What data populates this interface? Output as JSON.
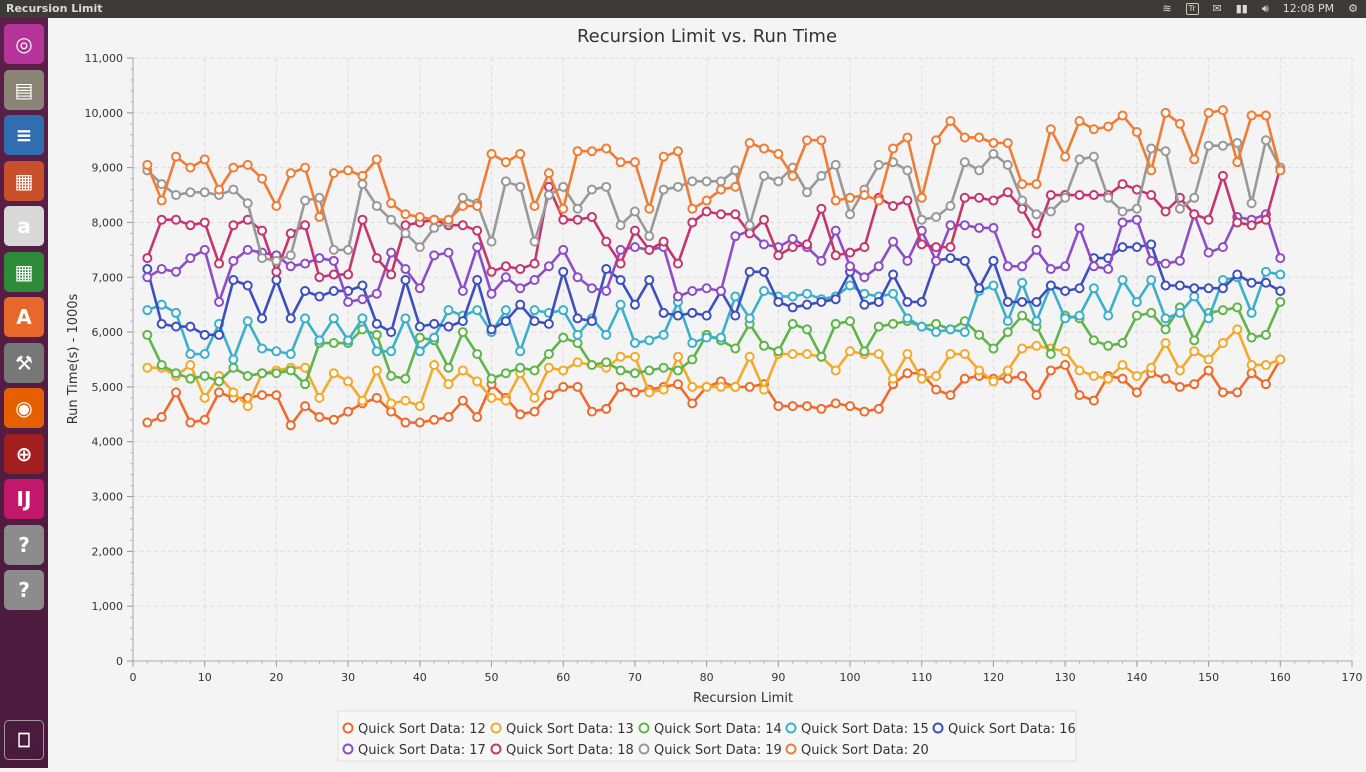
{
  "window": {
    "title": "Recursion Limit",
    "clock": "12:08 PM",
    "keyboard_indicator": "Tr"
  },
  "launcher": {
    "items": [
      {
        "name": "ubuntu-dash-icon",
        "bg": "#b5349a"
      },
      {
        "name": "files-icon",
        "bg": "#8a8476"
      },
      {
        "name": "writer-icon",
        "bg": "#2f6fb0"
      },
      {
        "name": "impress-icon",
        "bg": "#c9502a"
      },
      {
        "name": "amazon-icon",
        "bg": "#d9d9d9"
      },
      {
        "name": "calc-icon",
        "bg": "#2e8b3a"
      },
      {
        "name": "software-center-icon",
        "bg": "#e8672a"
      },
      {
        "name": "settings-icon",
        "bg": "#777777"
      },
      {
        "name": "firefox-icon",
        "bg": "#e66000"
      },
      {
        "name": "screen-tool-icon",
        "bg": "#a31f1f"
      },
      {
        "name": "intellij-icon",
        "bg": "#c2186a"
      },
      {
        "name": "unknown-app-icon",
        "bg": "#8c8c8c"
      },
      {
        "name": "unknown-app-icon",
        "bg": "#8c8c8c"
      }
    ],
    "trash_icon": "trash-icon"
  },
  "chart_data": {
    "type": "line",
    "title": "Recursion Limit vs. Run Time",
    "xlabel": "Recursion Limit",
    "ylabel": "Run Time(s) - 1000s",
    "xlim": [
      0,
      170
    ],
    "ylim": [
      0,
      11000
    ],
    "xticks": [
      "0",
      "10",
      "20",
      "30",
      "40",
      "50",
      "60",
      "70",
      "80",
      "90",
      "100",
      "110",
      "120",
      "130",
      "140",
      "150",
      "160",
      "170"
    ],
    "yticks": [
      "0",
      "1,000",
      "2,000",
      "3,000",
      "4,000",
      "5,000",
      "6,000",
      "7,000",
      "8,000",
      "9,000",
      "10,000",
      "11,000"
    ],
    "grid": true,
    "legend_position": "bottom",
    "x": [
      2,
      4,
      6,
      8,
      10,
      12,
      14,
      16,
      18,
      20,
      22,
      24,
      26,
      28,
      30,
      32,
      34,
      36,
      38,
      40,
      42,
      44,
      46,
      48,
      50,
      52,
      54,
      56,
      58,
      60,
      62,
      64,
      66,
      68,
      70,
      72,
      74,
      76,
      78,
      80,
      82,
      84,
      86,
      88,
      90,
      92,
      94,
      96,
      98,
      100,
      102,
      104,
      106,
      108,
      110,
      112,
      114,
      116,
      118,
      120,
      122,
      124,
      126,
      128,
      130,
      132,
      134,
      136,
      138,
      140,
      142,
      144,
      146,
      148,
      150,
      152,
      154,
      156,
      158,
      160
    ],
    "series": [
      {
        "name": "Quick Sort Data: 12",
        "color": "#ef6a2d",
        "values": [
          4350,
          4450,
          4900,
          4350,
          4400,
          4900,
          4800,
          4800,
          4850,
          4850,
          4300,
          4650,
          4450,
          4400,
          4550,
          4700,
          4800,
          4550,
          4350,
          4350,
          4400,
          4450,
          4750,
          4450,
          5050,
          4800,
          4500,
          4550,
          4850,
          5000,
          5000,
          4550,
          4600,
          5000,
          4900,
          4950,
          5000,
          5050,
          4700,
          5000,
          5100,
          5000,
          5000,
          5050,
          4650,
          4650,
          4650,
          4600,
          4700,
          4650,
          4550,
          4600,
          5050,
          5250,
          5250,
          4950,
          4850,
          5150,
          5200,
          5150,
          5150,
          5200,
          4850,
          5300,
          5400,
          4850,
          4750,
          5200,
          5150,
          4900,
          5250,
          5150,
          5000,
          5050,
          5300,
          4900,
          4900,
          5250,
          5050,
          5500
        ]
      },
      {
        "name": "Quick Sort Data: 13",
        "color": "#f3aa2a",
        "values": [
          5350,
          5350,
          5200,
          5400,
          4800,
          5200,
          4900,
          4650,
          5250,
          5300,
          5350,
          5350,
          4800,
          5250,
          5100,
          4750,
          5300,
          4700,
          4750,
          4650,
          5400,
          5050,
          5300,
          5100,
          4800,
          4750,
          5250,
          4800,
          5350,
          5300,
          5450,
          5400,
          5350,
          5550,
          5550,
          4900,
          4950,
          5550,
          5000,
          5000,
          5000,
          5000,
          5550,
          4950,
          5600,
          5600,
          5600,
          5550,
          5300,
          5650,
          5600,
          5600,
          5150,
          5600,
          5150,
          5200,
          5600,
          5600,
          5300,
          5100,
          5300,
          5700,
          5750,
          5700,
          5650,
          5300,
          5200,
          5150,
          5400,
          5200,
          5350,
          5800,
          5300,
          5650,
          5500,
          5800,
          6050,
          5400,
          5400,
          5500
        ]
      },
      {
        "name": "Quick Sort Data: 14",
        "color": "#5fb44a",
        "values": [
          5950,
          5400,
          5250,
          5150,
          5200,
          5100,
          5350,
          5200,
          5250,
          5250,
          5300,
          5050,
          5800,
          5800,
          5800,
          6050,
          5950,
          5200,
          5150,
          5900,
          5850,
          5350,
          6000,
          5600,
          5150,
          5250,
          5350,
          5300,
          5600,
          5900,
          5800,
          5400,
          5450,
          5300,
          5250,
          5300,
          5350,
          5300,
          5500,
          5950,
          5850,
          5700,
          6150,
          5750,
          5650,
          6150,
          6050,
          5550,
          6150,
          6200,
          5650,
          6100,
          6150,
          6200,
          6100,
          6150,
          6050,
          6200,
          5950,
          5700,
          6000,
          6300,
          6100,
          5600,
          6300,
          6250,
          5850,
          5750,
          5800,
          6300,
          6350,
          6050,
          6450,
          5850,
          6350,
          6400,
          6450,
          5900,
          5950,
          6550
        ]
      },
      {
        "name": "Quick Sort Data: 15",
        "color": "#3bb0cc",
        "values": [
          6400,
          6500,
          6350,
          5600,
          5600,
          6150,
          5500,
          6200,
          5700,
          5650,
          5600,
          6250,
          5850,
          6250,
          5850,
          6250,
          5650,
          5650,
          6250,
          5650,
          5900,
          6400,
          6300,
          6400,
          6000,
          6400,
          5650,
          6400,
          6350,
          6400,
          5950,
          6250,
          5950,
          6500,
          5800,
          5850,
          5950,
          6550,
          5800,
          5900,
          5900,
          6650,
          6250,
          6750,
          6650,
          6650,
          6700,
          6600,
          6650,
          6850,
          6700,
          6650,
          6700,
          6250,
          6100,
          6000,
          6050,
          6000,
          6750,
          6850,
          6200,
          6900,
          6200,
          6850,
          6250,
          6300,
          6800,
          6300,
          6950,
          6550,
          6950,
          6250,
          6350,
          6650,
          6250,
          6950,
          7000,
          6350,
          7100,
          7050
        ]
      },
      {
        "name": "Quick Sort Data: 16",
        "color": "#3d4fc0",
        "values": [
          7150,
          6150,
          6100,
          6100,
          5950,
          5950,
          6950,
          6850,
          6250,
          6950,
          6250,
          6750,
          6650,
          6750,
          6750,
          6850,
          6150,
          6000,
          6950,
          6100,
          6150,
          6100,
          6200,
          6950,
          6050,
          6200,
          6500,
          6200,
          6150,
          7100,
          6250,
          6200,
          7150,
          6950,
          6500,
          6950,
          6350,
          6300,
          6350,
          6300,
          6750,
          6300,
          7100,
          7100,
          6550,
          6450,
          6500,
          6550,
          6600,
          7100,
          6500,
          6550,
          7050,
          6550,
          6550,
          7300,
          7350,
          7300,
          6800,
          7300,
          6550,
          6550,
          6550,
          6850,
          6750,
          6800,
          7350,
          7350,
          7550,
          7550,
          7600,
          6850,
          6850,
          6800,
          6800,
          6800,
          7050,
          6900,
          6900,
          6750
        ]
      },
      {
        "name": "Quick Sort Data: 17",
        "color": "#8f4cc7",
        "values": [
          7000,
          7150,
          7100,
          7350,
          7500,
          6550,
          7300,
          7500,
          7450,
          7400,
          7200,
          7250,
          7350,
          7300,
          6550,
          6600,
          6700,
          7450,
          7150,
          6800,
          7400,
          7450,
          6750,
          7550,
          6700,
          7000,
          6800,
          6950,
          7200,
          7500,
          7000,
          6800,
          6750,
          7500,
          7550,
          7500,
          7550,
          6650,
          6750,
          6800,
          6750,
          7750,
          7850,
          7600,
          7550,
          7700,
          7550,
          7300,
          7850,
          7200,
          7000,
          7200,
          7650,
          7300,
          7850,
          7300,
          7950,
          7950,
          7900,
          7900,
          7200,
          7200,
          7500,
          7150,
          7200,
          7900,
          7200,
          7150,
          8000,
          8050,
          7300,
          7250,
          7300,
          8150,
          7450,
          7550,
          8100,
          8050,
          8150,
          7350
        ]
      },
      {
        "name": "Quick Sort Data: 18",
        "color": "#c5366c",
        "values": [
          7350,
          8050,
          8050,
          7950,
          8000,
          7250,
          7950,
          8050,
          7850,
          7100,
          7800,
          7950,
          7000,
          7050,
          7050,
          8050,
          7350,
          7050,
          7950,
          8000,
          8050,
          7950,
          7950,
          7850,
          7100,
          7200,
          7150,
          7250,
          8650,
          8050,
          8050,
          8100,
          7650,
          7250,
          7850,
          7500,
          7650,
          7250,
          8000,
          8200,
          8150,
          8150,
          7800,
          8050,
          7400,
          7550,
          7600,
          8250,
          7400,
          7450,
          7550,
          8450,
          8300,
          8400,
          7600,
          7550,
          7550,
          8450,
          8450,
          8400,
          8550,
          8250,
          7800,
          8500,
          8500,
          8500,
          8500,
          8500,
          8700,
          8600,
          8500,
          8200,
          8450,
          8150,
          8050,
          8850,
          8000,
          7950,
          8050,
          9000
        ]
      },
      {
        "name": "Quick Sort Data: 19",
        "color": "#999999",
        "values": [
          8950,
          8700,
          8500,
          8550,
          8550,
          8500,
          8600,
          8350,
          7350,
          7300,
          7400,
          8400,
          8450,
          7500,
          7500,
          8700,
          8300,
          8050,
          7800,
          7550,
          7900,
          8000,
          8450,
          8350,
          7650,
          8750,
          8650,
          7650,
          8500,
          8650,
          8250,
          8600,
          8650,
          7950,
          8200,
          7750,
          8600,
          8650,
          8750,
          8750,
          8750,
          8950,
          7950,
          8850,
          8750,
          9000,
          8550,
          8850,
          9050,
          8150,
          8600,
          9050,
          9100,
          8950,
          8050,
          8100,
          8300,
          9100,
          8950,
          9250,
          9050,
          8400,
          8150,
          8200,
          8450,
          9150,
          9200,
          8450,
          8200,
          8250,
          9350,
          9300,
          8250,
          8450,
          9400,
          9400,
          9450,
          8350,
          9500,
          9000
        ]
      },
      {
        "name": "Quick Sort Data: 20",
        "color": "#f07c35",
        "values": [
          9050,
          8400,
          9200,
          9000,
          9150,
          8600,
          9000,
          9050,
          8800,
          8300,
          8900,
          9000,
          8100,
          8900,
          8950,
          8850,
          9150,
          8350,
          8150,
          8100,
          8050,
          8050,
          8300,
          8300,
          9250,
          9100,
          9250,
          8300,
          8900,
          8250,
          9300,
          9300,
          9350,
          9100,
          9100,
          8250,
          9200,
          9300,
          8250,
          8400,
          8600,
          8650,
          9450,
          9350,
          9250,
          8850,
          9500,
          9500,
          8400,
          8450,
          8500,
          8400,
          9350,
          9550,
          8450,
          9500,
          9850,
          9550,
          9550,
          9450,
          9450,
          8700,
          8700,
          9700,
          9200,
          9850,
          9700,
          9750,
          9950,
          9650,
          8950,
          10000,
          9800,
          9150,
          10000,
          10050,
          9100,
          9950,
          9950,
          8950
        ]
      }
    ]
  }
}
